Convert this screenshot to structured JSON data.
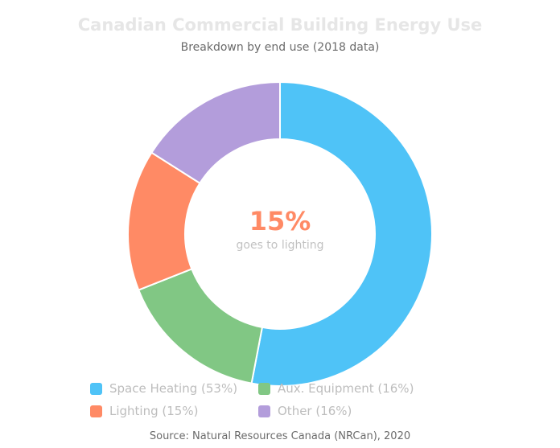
{
  "chart_data": {
    "type": "pie",
    "title": "Canadian Commercial Building Energy Use",
    "subtitle": "Breakdown by end use (2018 data)",
    "categories": [
      "Space Heating",
      "Aux. Equipment",
      "Lighting",
      "Other"
    ],
    "values": [
      53,
      16,
      15,
      16
    ],
    "unit": "%",
    "legend_labels": [
      "Space Heating (53%)",
      "Aux. Equipment (16%)",
      "Lighting (15%)",
      "Other (16%)"
    ],
    "colors": [
      "#4fc3f7",
      "#81c784",
      "#ff8a65",
      "#b39ddb"
    ],
    "legend_position": "bottom",
    "center_value": "15%",
    "center_label": "goes to lighting",
    "center_color": "#ff8a65",
    "source": "Source: Natural Resources Canada (NRCan), 2020"
  }
}
